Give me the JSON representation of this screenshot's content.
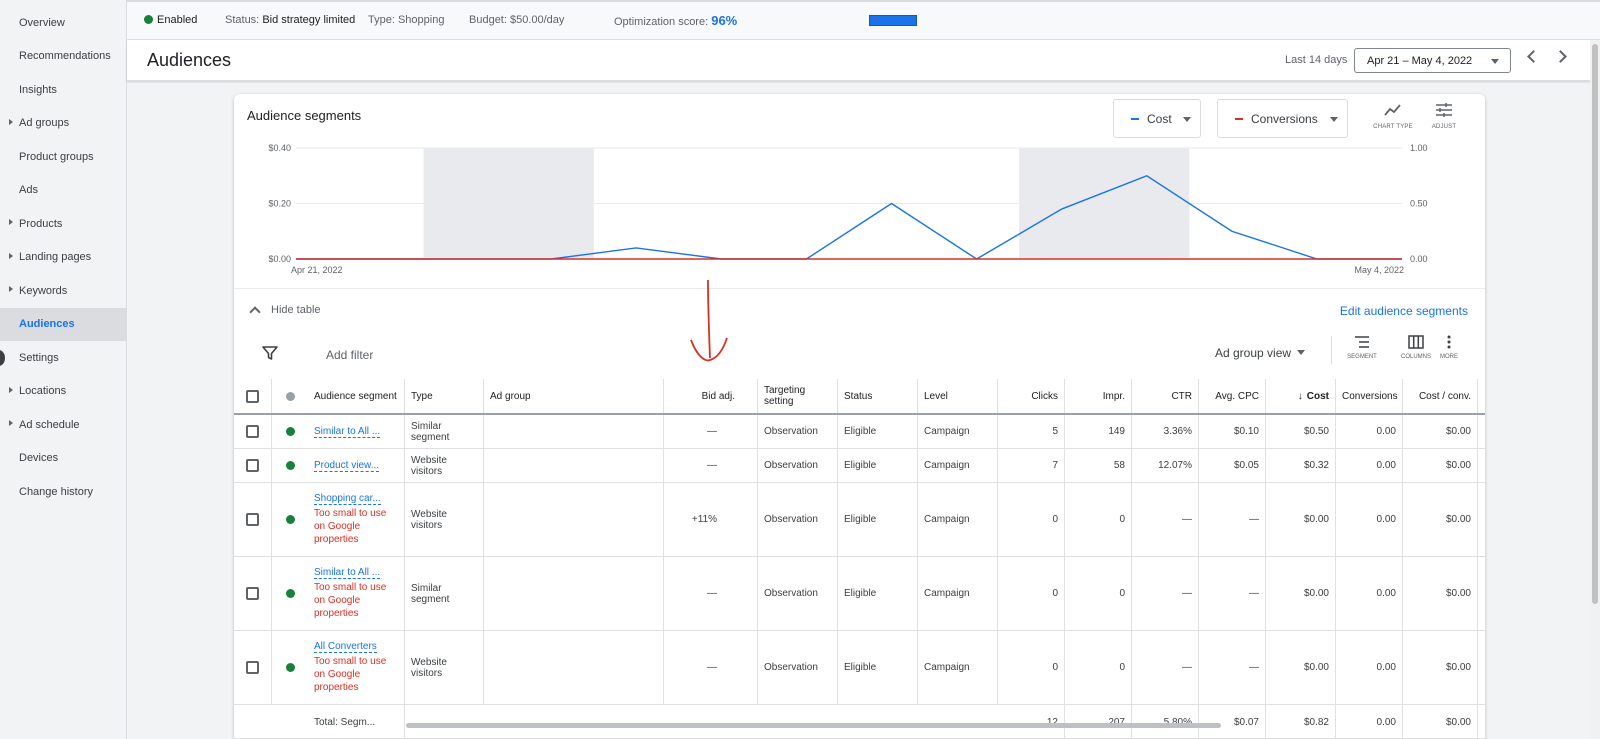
{
  "sidebar": {
    "items": [
      {
        "label": "Overview",
        "caret": false,
        "active": false
      },
      {
        "label": "Recommendations",
        "caret": false,
        "active": false
      },
      {
        "label": "Insights",
        "caret": false,
        "active": false
      },
      {
        "label": "Ad groups",
        "caret": true,
        "active": false
      },
      {
        "label": "Product groups",
        "caret": false,
        "active": false
      },
      {
        "label": "Ads",
        "caret": false,
        "active": false
      },
      {
        "label": "Products",
        "caret": true,
        "active": false
      },
      {
        "label": "Landing pages",
        "caret": true,
        "active": false
      },
      {
        "label": "Keywords",
        "caret": true,
        "active": false
      },
      {
        "label": "Audiences",
        "caret": false,
        "active": true
      },
      {
        "label": "Settings",
        "caret": false,
        "active": false
      },
      {
        "label": "Locations",
        "caret": true,
        "active": false
      },
      {
        "label": "Ad schedule",
        "caret": true,
        "active": false
      },
      {
        "label": "Devices",
        "caret": false,
        "active": false
      },
      {
        "label": "Change history",
        "caret": false,
        "active": false
      }
    ]
  },
  "status_bar": {
    "state": "Enabled",
    "status_label": "Status:",
    "status_value": "Bid strategy limited",
    "type_label": "Type:",
    "type_value": "Shopping",
    "budget_label": "Budget:",
    "budget_value": "$50.00/day",
    "opt_label": "Optimization score:",
    "opt_value": "96%"
  },
  "header": {
    "title": "Audiences",
    "date_label": "Last 14 days",
    "date_range": "Apr 21 – May 4, 2022"
  },
  "card": {
    "title": "Audience segments",
    "metric1": "Cost",
    "metric2": "Conversions",
    "chart_type_label": "CHART TYPE",
    "adjust_label": "ADJUST",
    "hide_table": "Hide table",
    "edit_link": "Edit audience segments",
    "add_filter": "Add filter",
    "view_select": "Ad group view",
    "segment_label": "SEGMENT",
    "columns_label": "COLUMNS",
    "more_label": "MORE"
  },
  "colors": {
    "cost": "#1a73e8",
    "conversions": "#d93025",
    "enabled": "#188038"
  },
  "chart_data": {
    "type": "line",
    "x": [
      "Apr 21",
      "Apr 22",
      "Apr 23",
      "Apr 24",
      "Apr 25",
      "Apr 26",
      "Apr 27",
      "Apr 28",
      "Apr 29",
      "Apr 30",
      "May 1",
      "May 2",
      "May 3",
      "May 4"
    ],
    "x_tick_labels": [
      "Apr 21, 2022",
      "May 4, 2022"
    ],
    "series": [
      {
        "name": "Cost",
        "axis": "left",
        "values": [
          0,
          0,
          0,
          0,
          0.04,
          0,
          0,
          0.2,
          0,
          0.18,
          0.3,
          0.1,
          0,
          0
        ]
      },
      {
        "name": "Conversions",
        "axis": "right",
        "values": [
          0,
          0,
          0,
          0,
          0,
          0,
          0,
          0,
          0,
          0,
          0,
          0,
          0,
          0
        ]
      }
    ],
    "y_left": {
      "ticks": [
        "$0.40",
        "$0.20",
        "$0.00"
      ],
      "range": [
        0,
        0.4
      ]
    },
    "y_right": {
      "ticks": [
        "1.00",
        "0.50",
        "0.00"
      ],
      "range": [
        0,
        1
      ]
    },
    "weekend_shading": [
      [
        "Apr 23",
        "Apr 24"
      ],
      [
        "Apr 30",
        "May 1"
      ]
    ],
    "grid": true
  },
  "table": {
    "headers": {
      "segment": "Audience segment",
      "type": "Type",
      "ad_group": "Ad group",
      "bid_adj": "Bid adj.",
      "targeting": "Targeting setting",
      "status": "Status",
      "level": "Level",
      "clicks": "Clicks",
      "impr": "Impr.",
      "ctr": "CTR",
      "avg_cpc": "Avg. CPC",
      "cost": "Cost",
      "conversions": "Conversions",
      "cost_conv": "Cost / conv."
    },
    "rows": [
      {
        "segment": "Similar to All ...",
        "warning": "",
        "type": "Similar segment",
        "ad_group": "",
        "bid_adj": "—",
        "targeting": "Observation",
        "status": "Eligible",
        "level": "Campaign",
        "clicks": "5",
        "impr": "149",
        "ctr": "3.36%",
        "avg_cpc": "$0.10",
        "cost": "$0.50",
        "conversions": "0.00",
        "cost_conv": "$0.00"
      },
      {
        "segment": "Product view...",
        "warning": "",
        "type": "Website visitors",
        "ad_group": "",
        "bid_adj": "—",
        "targeting": "Observation",
        "status": "Eligible",
        "level": "Campaign",
        "clicks": "7",
        "impr": "58",
        "ctr": "12.07%",
        "avg_cpc": "$0.05",
        "cost": "$0.32",
        "conversions": "0.00",
        "cost_conv": "$0.00"
      },
      {
        "segment": "Shopping car...",
        "warning": "Too small to use on Google properties",
        "type": "Website visitors",
        "ad_group": "",
        "bid_adj": "+11%",
        "targeting": "Observation",
        "status": "Eligible",
        "level": "Campaign",
        "clicks": "0",
        "impr": "0",
        "ctr": "—",
        "avg_cpc": "—",
        "cost": "$0.00",
        "conversions": "0.00",
        "cost_conv": "$0.00"
      },
      {
        "segment": "Similar to All ...",
        "warning": "Too small to use on Google properties",
        "type": "Similar segment",
        "ad_group": "",
        "bid_adj": "—",
        "targeting": "Observation",
        "status": "Eligible",
        "level": "Campaign",
        "clicks": "0",
        "impr": "0",
        "ctr": "—",
        "avg_cpc": "—",
        "cost": "$0.00",
        "conversions": "0.00",
        "cost_conv": "$0.00"
      },
      {
        "segment": "All Converters",
        "warning": "Too small to use on Google properties",
        "type": "Website visitors",
        "ad_group": "",
        "bid_adj": "—",
        "targeting": "Observation",
        "status": "Eligible",
        "level": "Campaign",
        "clicks": "0",
        "impr": "0",
        "ctr": "—",
        "avg_cpc": "—",
        "cost": "$0.00",
        "conversions": "0.00",
        "cost_conv": "$0.00"
      }
    ],
    "total": {
      "segment": "Total: Segm...",
      "clicks": "12",
      "impr": "207",
      "ctr": "5.80%",
      "avg_cpc": "$0.07",
      "cost": "$0.82",
      "conversions": "0.00",
      "cost_conv": "$0.00"
    }
  }
}
